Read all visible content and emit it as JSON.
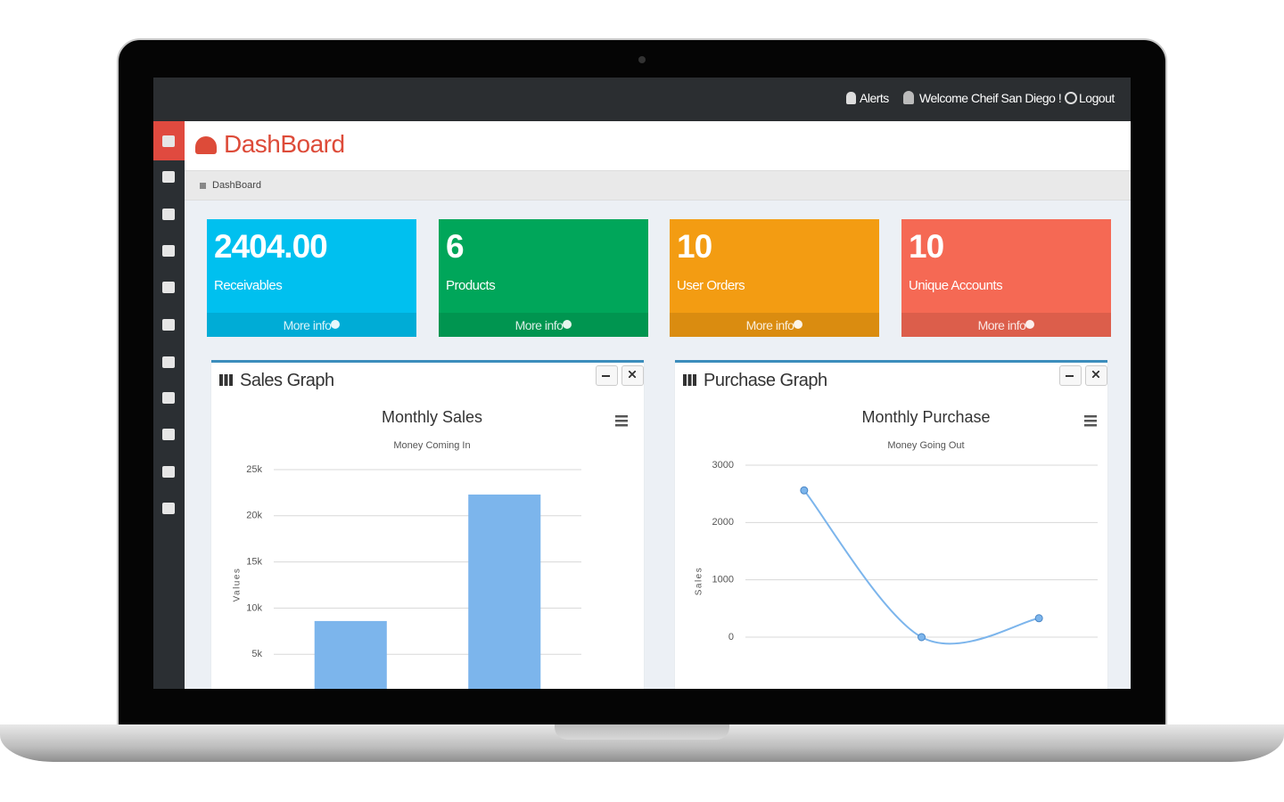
{
  "navbar": {
    "alerts": "Alerts",
    "welcome": "Welcome Cheif San Diego !",
    "logout": "Logout"
  },
  "header": {
    "title": "DashBoard"
  },
  "breadcrumb": {
    "items": [
      "DashBoard"
    ]
  },
  "stat_boxes": [
    {
      "value": "2404.00",
      "label": "Receivables",
      "link": "More info",
      "color": "#00c0ef"
    },
    {
      "value": "6",
      "label": "Products",
      "link": "More info",
      "color": "#00a65a"
    },
    {
      "value": "10",
      "label": "User Orders",
      "link": "More info",
      "color": "#f39c12"
    },
    {
      "value": "10",
      "label": "Unique Accounts",
      "link": "More info",
      "color": "#f56954"
    }
  ],
  "panels": [
    {
      "title": "Sales Graph",
      "chart_data": {
        "type": "bar",
        "title": "Monthly Sales",
        "subtitle": "Money Coming In",
        "y_label": "Values",
        "categories": [
          null,
          null
        ],
        "values": [
          8600,
          22300
        ],
        "color": "#7cb5ec",
        "ylim": [
          0,
          25000
        ],
        "yticks": [
          {
            "value": 5000,
            "label": "5k"
          },
          {
            "value": 10000,
            "label": "10k"
          },
          {
            "value": 15000,
            "label": "15k"
          },
          {
            "value": 20000,
            "label": "20k"
          },
          {
            "value": 25000,
            "label": "25k"
          }
        ],
        "grid": true
      }
    },
    {
      "title": "Purchase Graph",
      "chart_data": {
        "type": "line",
        "title": "Monthly Purchase",
        "subtitle": "Money Going Out",
        "y_label": "Sales",
        "categories": [
          null,
          null,
          null
        ],
        "values": [
          2560,
          0,
          330
        ],
        "color": "#7cb5ec",
        "ylim": [
          0,
          3000
        ],
        "yticks": [
          0,
          1000,
          2000,
          3000
        ],
        "grid": true
      }
    }
  ]
}
